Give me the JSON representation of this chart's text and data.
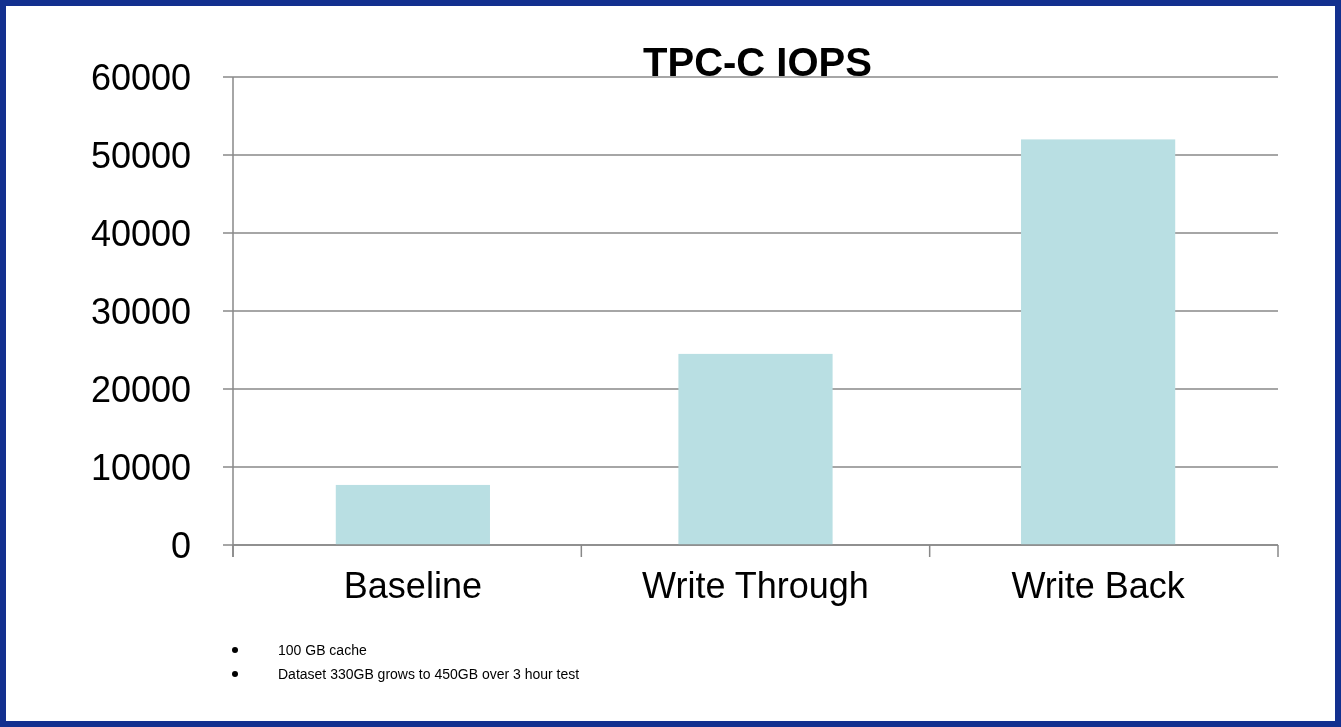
{
  "chart_data": {
    "type": "bar",
    "title": "TPC-C IOPS",
    "categories": [
      "Baseline",
      "Write Through",
      "Write Back"
    ],
    "values": [
      7700,
      24500,
      52000
    ],
    "color": "#b9dfe3",
    "ylim": [
      0,
      60000
    ],
    "yticks": [
      0,
      10000,
      20000,
      30000,
      40000,
      50000,
      60000
    ],
    "grid": "y",
    "annotations": [
      "100 GB cache",
      "Dataset 330GB grows to 450GB over 3 hour test"
    ]
  }
}
